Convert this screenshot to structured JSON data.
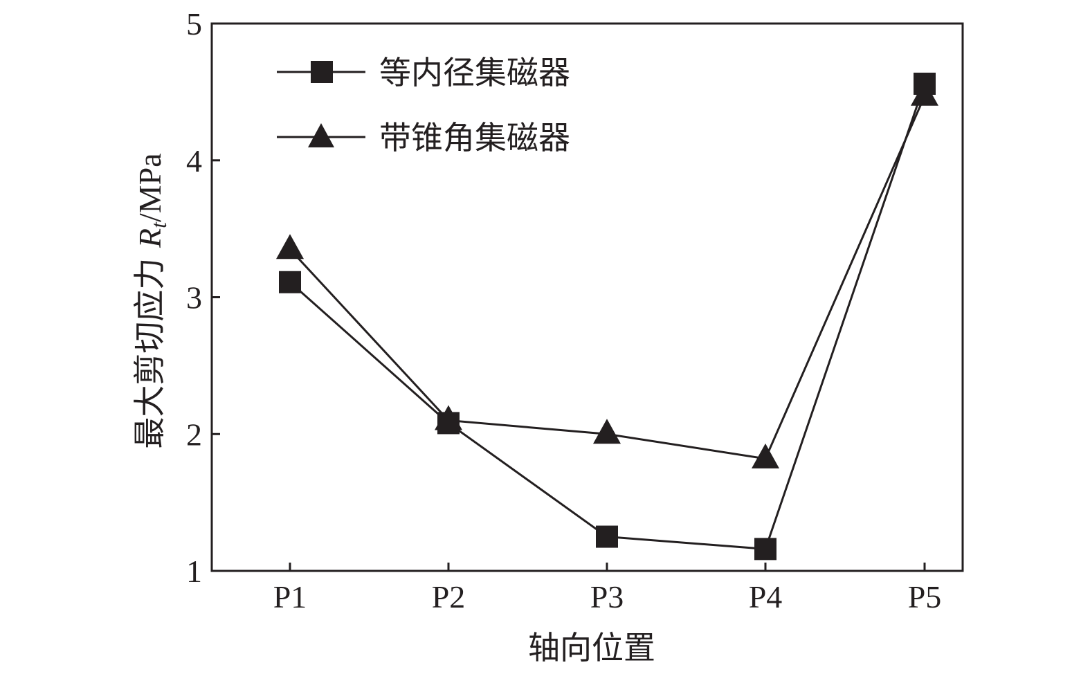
{
  "chart_data": {
    "type": "line",
    "title": "",
    "xlabel": "轴向位置",
    "ylabel": {
      "prefix": "最大剪切应力 ",
      "symbol": "R",
      "subscript": "t",
      "unit": "/MPa"
    },
    "categories": [
      "P1",
      "P2",
      "P3",
      "P4",
      "P5"
    ],
    "ylim": [
      1,
      5
    ],
    "yticks": [
      1,
      2,
      3,
      4,
      5
    ],
    "grid": false,
    "legend_position": "top-left",
    "series": [
      {
        "name": "等内径集磁器",
        "marker": "square",
        "color": "#231f20",
        "values": [
          3.11,
          2.08,
          1.25,
          1.16,
          4.56
        ]
      },
      {
        "name": "带锥角集磁器",
        "marker": "triangle",
        "color": "#231f20",
        "values": [
          3.35,
          2.1,
          2.0,
          1.82,
          4.47
        ]
      }
    ]
  }
}
